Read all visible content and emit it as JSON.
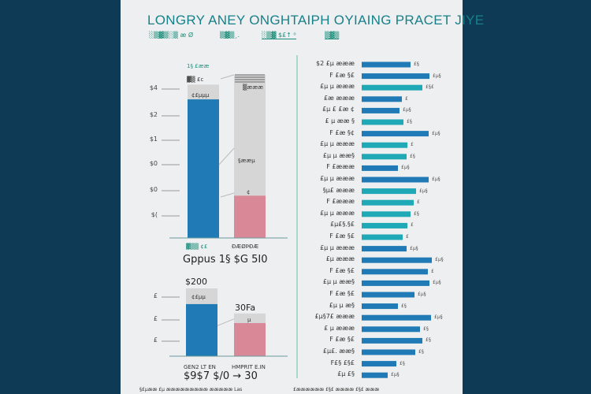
{
  "title": "LONGRY ANEY ONGHTAIPH OYIAING PRACET JIYE",
  "subtitles": [
    "░▒▓▒░▒ æ Ø",
    "▒▓▒¸.",
    "░▒▓ $£↑ ⁰",
    "▒▓▒"
  ],
  "colors": {
    "background": "#0f3a55",
    "panel": "#eeeff0",
    "blue": "#1f7ab5",
    "teal": "#1fa8b5",
    "pink": "#d98898",
    "gray": "#d6d6d6",
    "title": "#17808a",
    "accent_line": "#6cc0a0"
  },
  "chart_data": [
    {
      "type": "bar",
      "stacked": true,
      "ylim": [
        0,
        100
      ],
      "ytick_labels": [
        "$4",
        "$2",
        "$1",
        "$0",
        "$0",
        "$("
      ],
      "categories": [
        "▓▒▒ ¢£",
        "ÐÆØÞÐÆ"
      ],
      "series": [
        {
          "color": "#1f7ab5",
          "values": [
            85,
            0
          ]
        },
        {
          "color": "#d98898",
          "values": [
            0,
            26
          ]
        },
        {
          "color": "#d6d6d6",
          "values": [
            9,
            74
          ]
        }
      ],
      "data_labels": [
        "1§ £ææ",
        "▓▒ £c",
        "¢£µµµ",
        "▒æææ",
        "§ææµ",
        "¢"
      ],
      "footer": "Gppus 1§ $G 5I0"
    },
    {
      "type": "bar",
      "stacked": true,
      "ylim": [
        0,
        100
      ],
      "ytick_labels": [
        "£",
        "£",
        "£"
      ],
      "categories": [
        "GEN2 LT EN",
        "HMPRIT E.IN"
      ],
      "series": [
        {
          "color": "#1f7ab5",
          "values": [
            77,
            0
          ]
        },
        {
          "color": "#d98898",
          "values": [
            0,
            49
          ]
        },
        {
          "color": "#d6d6d6",
          "values": [
            23,
            14
          ]
        }
      ],
      "data_labels": [
        "$200",
        "¢£µµ",
        "30Fa",
        "µ"
      ],
      "footer": "$9$7 $/0 → 30"
    },
    {
      "type": "bar",
      "orientation": "horizontal",
      "xlim": [
        0,
        100
      ],
      "labels": [
        "$2 £µ æææ",
        "F £æ §£",
        "£µ µ æææ",
        "£æ æææ",
        "£µ £ £æ ¢",
        "£ µ ææ §",
        "F £æ §¢",
        "£µ µ æææ",
        "£µ µ ææ§",
        "F £æææ",
        "£µ µ æææ",
        "§µ£ æææ",
        "F £æææ",
        "£µ µ æææ",
        "£µ£§.§£",
        "F £æ §£",
        "£µ µ æææ",
        "£µ æææ",
        "F £æ §£",
        "£µ µ ææ§",
        "F £æ §£",
        "£µ µ æ§",
        "£µ§7£ æææ",
        "£ µ æææ",
        "F £æ §£",
        "£µ£. ææ§",
        "F£§ £§£",
        "£µ £§"
      ],
      "values": [
        62,
        86,
        77,
        51,
        48,
        53,
        85,
        58,
        57,
        46,
        85,
        69,
        66,
        62,
        58,
        52,
        57,
        89,
        84,
        86,
        67,
        46,
        88,
        74,
        77,
        68,
        44,
        33
      ],
      "value_labels": [
        "£§",
        "£µ§",
        "£§£",
        "£",
        "£µ§",
        "£§",
        "£µ§",
        "£",
        "£§",
        "£µ§",
        "£µ§",
        "£µ§",
        "£",
        "£§",
        "£",
        "£",
        "£µ§",
        "£µ§",
        "£",
        "£µ§",
        "£µ§",
        "£§",
        "£µ§",
        "£§",
        "£§",
        "£§",
        "£§",
        "£µ§"
      ],
      "bar_colors": [
        "blue",
        "blue",
        "teal",
        "blue",
        "blue",
        "teal",
        "blue",
        "teal",
        "teal",
        "blue",
        "blue",
        "teal",
        "teal",
        "teal",
        "teal",
        "teal",
        "blue",
        "blue",
        "blue",
        "blue",
        "blue",
        "blue",
        "blue",
        "blue",
        "blue",
        "blue",
        "blue",
        "blue"
      ]
    }
  ],
  "footnotes": [
    "§£µææ £µ æææææææææ æææææ Las",
    "£ææææææ £§£ ææææ £§£ æææ"
  ]
}
